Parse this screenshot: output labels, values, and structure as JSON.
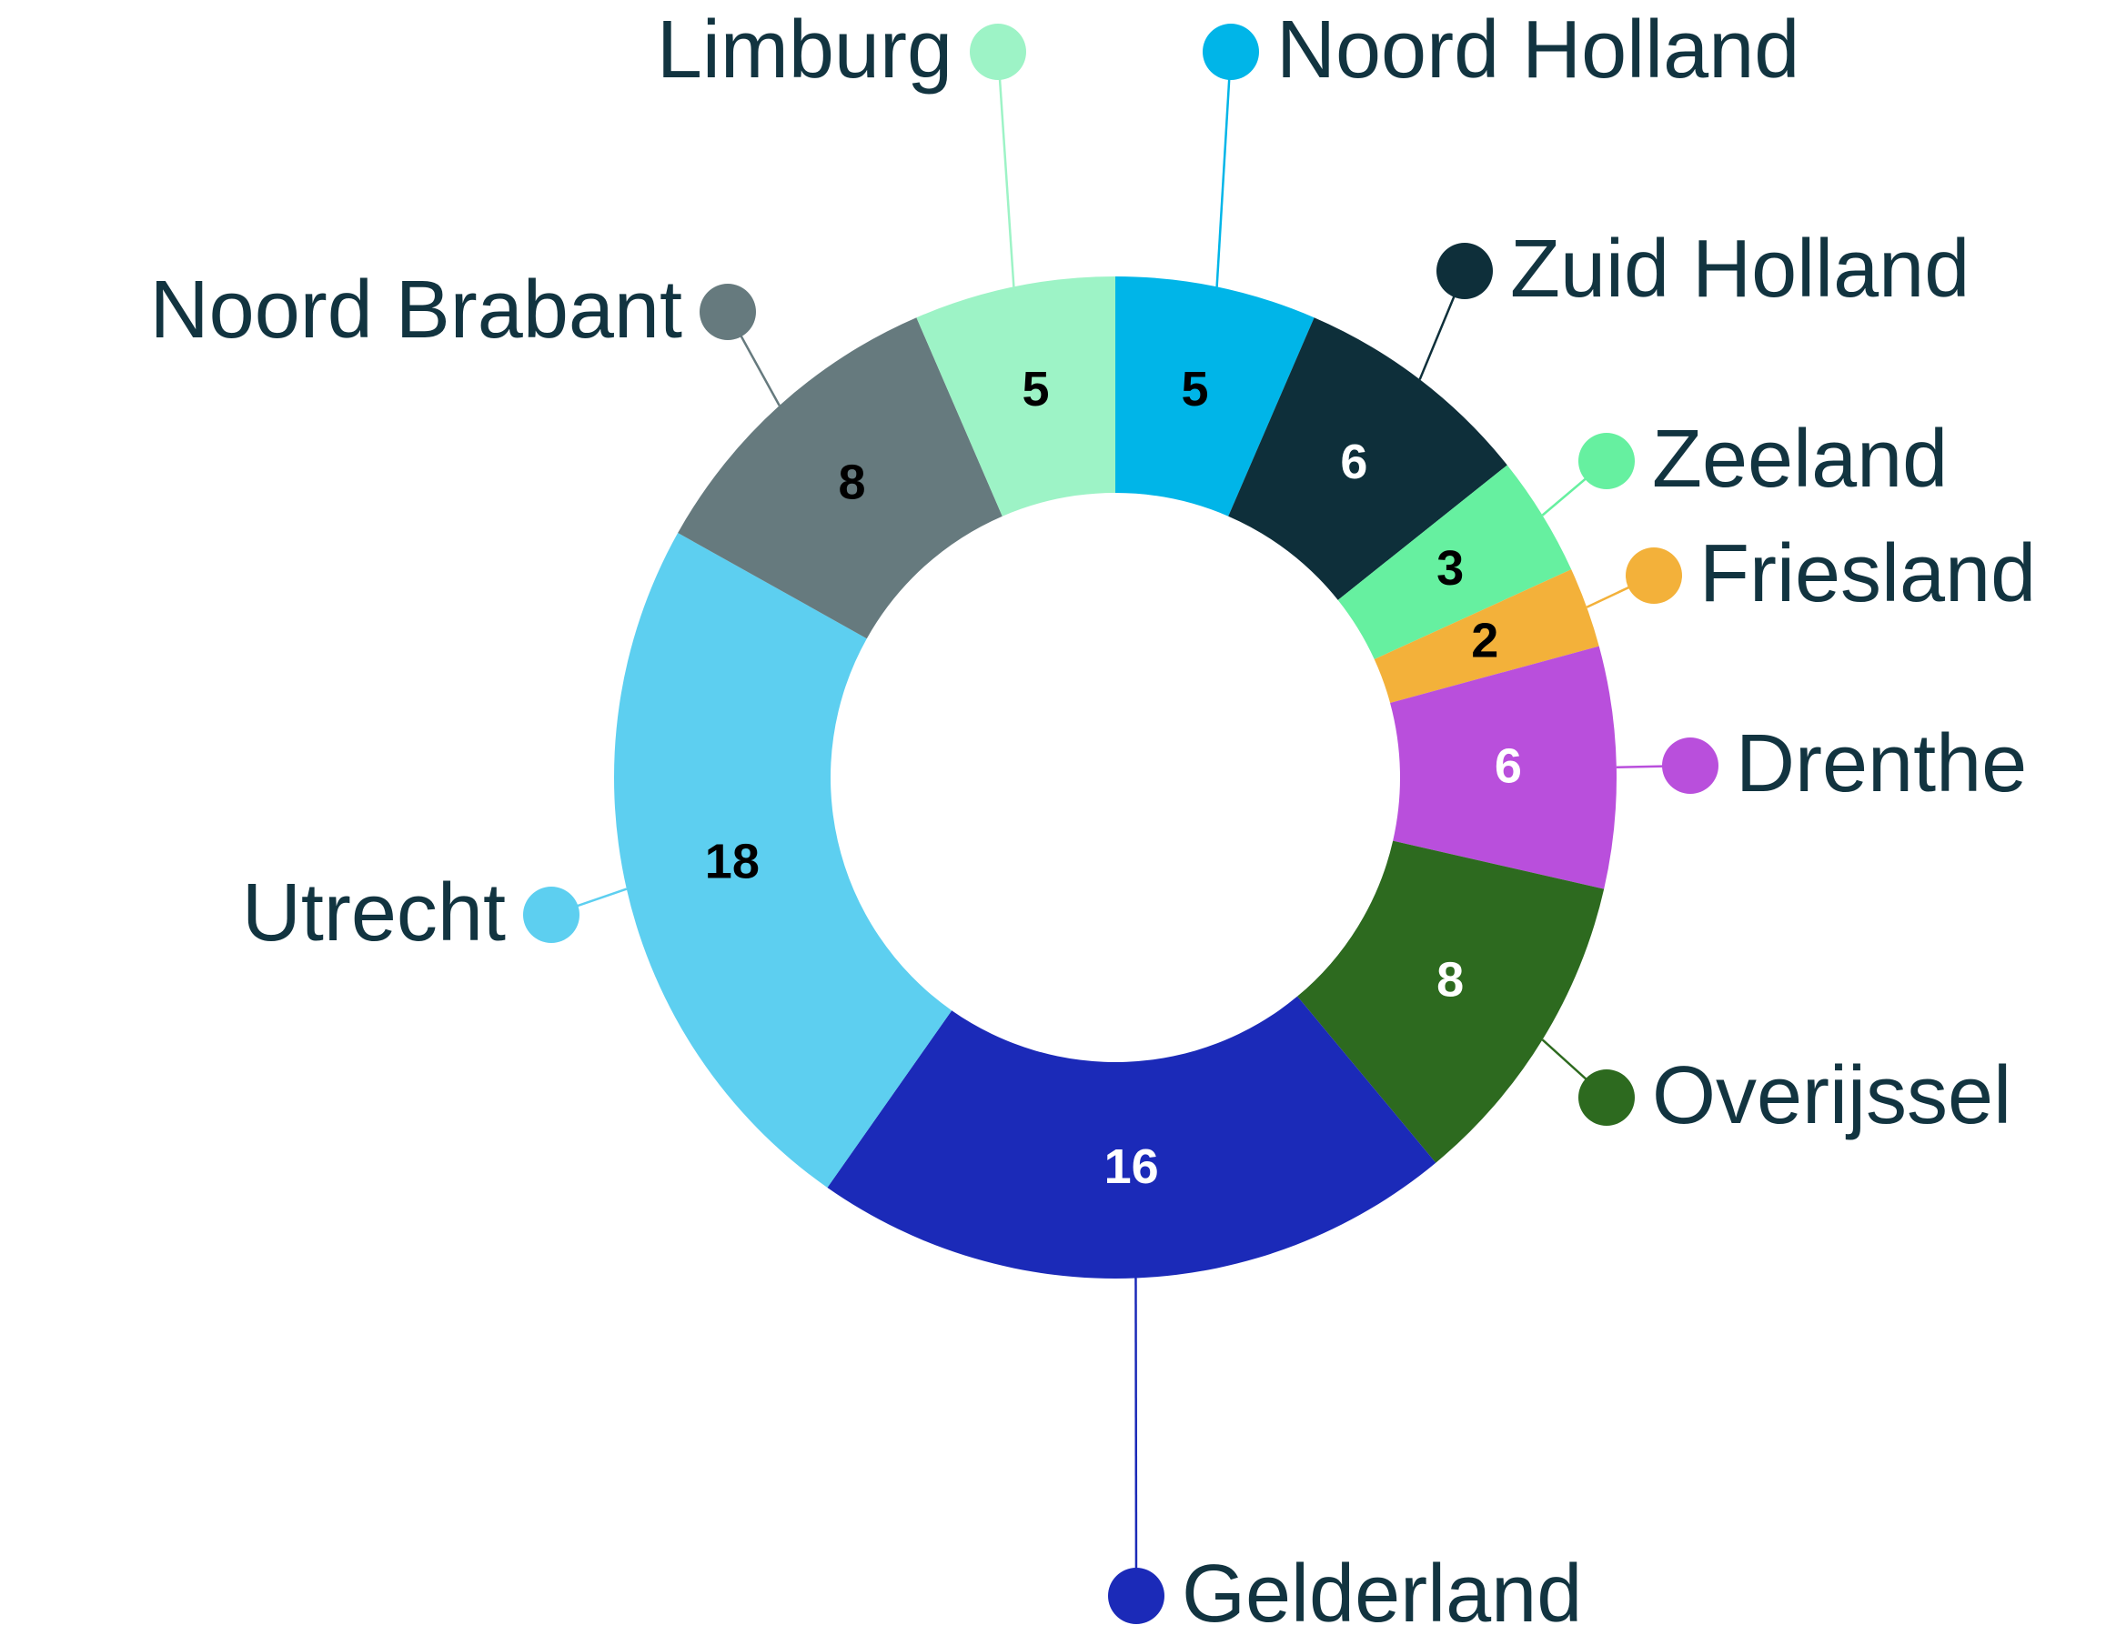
{
  "chart_data": {
    "type": "donut",
    "categories": [
      "Noord Holland",
      "Zuid Holland",
      "Zeeland",
      "Friesland",
      "Drenthe",
      "Overijssel",
      "Gelderland",
      "Utrecht",
      "Noord Brabant",
      "Limburg"
    ],
    "values": [
      5,
      6,
      3,
      2,
      6,
      8,
      16,
      18,
      8,
      5
    ],
    "colors": [
      "#00b5e8",
      "#0e2f3a",
      "#66f0a0",
      "#f3b13a",
      "#b94fdc",
      "#2d6a1f",
      "#1b2ab8",
      "#5dcff0",
      "#667a7e",
      "#9df3c6"
    ],
    "value_label_colors": [
      "#000000",
      "#ffffff",
      "#000000",
      "#000000",
      "#ffffff",
      "#ffffff",
      "#ffffff",
      "#000000",
      "#000000",
      "#000000"
    ]
  }
}
